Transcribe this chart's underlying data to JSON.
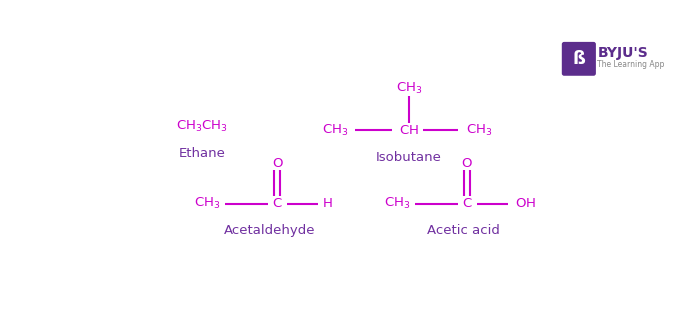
{
  "bg_color": "#ffffff",
  "formula_color": "#cc00cc",
  "label_color": "#7030a0",
  "byju_box_color": "#5c2d8c",
  "fig_width": 7.0,
  "fig_height": 3.17,
  "dpi": 100,
  "compounds": [
    {
      "name": "Ethane"
    },
    {
      "name": "Isobutane"
    },
    {
      "name": "Acetaldehyde"
    },
    {
      "name": "Acetic acid"
    }
  ]
}
